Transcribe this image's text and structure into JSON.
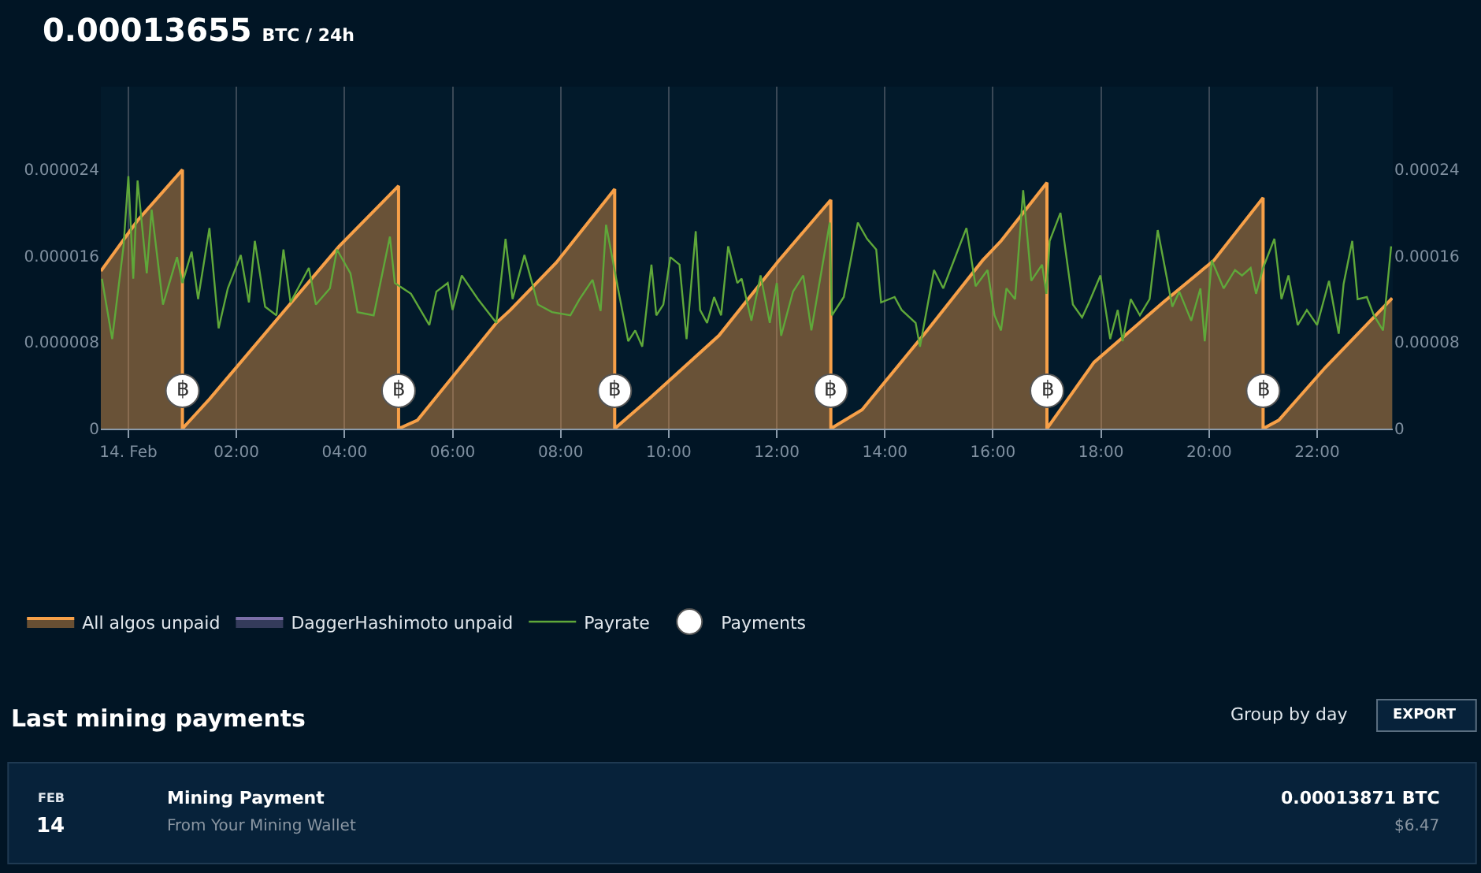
{
  "chart_data": {
    "type": "line",
    "title": "0.00013655",
    "subtitle": "BTC / 24h",
    "xlim": [
      -0.51,
      23.4
    ],
    "xticks": [
      {
        "value": 0,
        "label": "14. Feb"
      },
      {
        "value": 2,
        "label": "02:00"
      },
      {
        "value": 4,
        "label": "04:00"
      },
      {
        "value": 6,
        "label": "06:00"
      },
      {
        "value": 8,
        "label": "08:00"
      },
      {
        "value": 10,
        "label": "10:00"
      },
      {
        "value": 12,
        "label": "12:00"
      },
      {
        "value": 14,
        "label": "14:00"
      },
      {
        "value": 16,
        "label": "16:00"
      },
      {
        "value": 18,
        "label": "18:00"
      },
      {
        "value": 20,
        "label": "20:00"
      },
      {
        "value": 22,
        "label": "22:00"
      }
    ],
    "ylim": [
      0,
      3.17e-05
    ],
    "yticks": [
      0,
      {
        "value": 8e-06,
        "label": "0.000008"
      },
      {
        "value": 1.6e-05,
        "label": "0.000016"
      },
      {
        "value": 2.4e-05,
        "label": "0.000024"
      }
    ],
    "y2lim": [
      0,
      0.000317
    ],
    "y2ticks": [
      0,
      {
        "value": 8e-05,
        "label": "0.00008"
      },
      {
        "value": 0.00016,
        "label": "0.00016"
      },
      {
        "value": 0.00024,
        "label": "0.00024"
      }
    ],
    "grid": "x",
    "legend": "bottom",
    "series": [
      {
        "name": "All algos unpaid",
        "type": "area",
        "axis": "y2",
        "color": "#f7a048",
        "x": [
          -0.51,
          0.17,
          1.0,
          1.0,
          1.5,
          2.78,
          3.9,
          5.0,
          5.0,
          5.35,
          6.81,
          7.07,
          7.92,
          9.0,
          9.0,
          9.64,
          10.93,
          12.04,
          13.0,
          13.0,
          13.58,
          14.78,
          15.81,
          16.15,
          17.0,
          17.0,
          17.87,
          19.15,
          20.09,
          21.0,
          21.0,
          21.29,
          22.15,
          23.39
        ],
        "values": [
          0.000146,
          0.000193,
          0.00024,
          0,
          2.73e-05,
          0.000103,
          0.000169,
          0.000225,
          0,
          7.8e-06,
          9.8e-05,
          0.00011,
          0.000154,
          0.000222,
          0,
          2.78e-05,
          8.63e-05,
          0.000156,
          0.000212,
          0,
          1.76e-05,
          9.07e-05,
          0.000156,
          0.000174,
          0.000228,
          0,
          6.14e-05,
          0.000117,
          0.000156,
          0.000214,
          0,
          7.8e-06,
          5.66e-05,
          0.000121
        ]
      },
      {
        "name": "DaggerHashimoto unpaid",
        "type": "area",
        "axis": "y2",
        "color": "#7b6fa8"
      },
      {
        "name": "Payrate",
        "color": "#5fa83a",
        "marker": "none",
        "x": [
          -0.49,
          -0.3,
          -0.09,
          0.0,
          0.09,
          0.17,
          0.34,
          0.43,
          0.64,
          0.9,
          1.0,
          1.17,
          1.29,
          1.5,
          1.67,
          1.84,
          2.08,
          2.23,
          2.34,
          2.53,
          2.74,
          2.87,
          3.0,
          3.34,
          3.47,
          3.73,
          3.86,
          4.11,
          4.24,
          4.54,
          4.84,
          4.93,
          5.23,
          5.57,
          5.7,
          5.91,
          6.0,
          6.17,
          6.47,
          6.81,
          6.98,
          7.11,
          7.33,
          7.58,
          7.84,
          8.18,
          8.35,
          8.59,
          8.74,
          8.84,
          9.08,
          9.25,
          9.38,
          9.51,
          9.68,
          9.77,
          9.9,
          10.03,
          10.2,
          10.33,
          10.5,
          10.58,
          10.71,
          10.84,
          10.97,
          11.1,
          11.27,
          11.35,
          11.53,
          11.7,
          11.87,
          12.0,
          12.08,
          12.3,
          12.49,
          12.64,
          12.98,
          13.02,
          13.24,
          13.5,
          13.67,
          13.84,
          13.93,
          14.18,
          14.31,
          14.57,
          14.65,
          14.91,
          15.08,
          15.34,
          15.51,
          15.68,
          15.9,
          16.03,
          16.15,
          16.25,
          16.41,
          16.56,
          16.71,
          16.91,
          16.99,
          17.05,
          17.25,
          17.48,
          17.65,
          17.78,
          17.99,
          18.17,
          18.31,
          18.4,
          18.55,
          18.72,
          18.9,
          19.05,
          19.32,
          19.45,
          19.67,
          19.84,
          19.92,
          20.05,
          20.27,
          20.48,
          20.61,
          20.77,
          20.87,
          21.0,
          21.21,
          21.34,
          21.47,
          21.64,
          21.81,
          22.0,
          22.22,
          22.4,
          22.49,
          22.65,
          22.75,
          22.92,
          23.05,
          23.22,
          23.37
        ],
        "values": [
          1.39e-05,
          8.3e-06,
          1.69e-05,
          2.34e-05,
          1.39e-05,
          2.3e-05,
          1.44e-05,
          2.03e-05,
          1.15e-05,
          1.59e-05,
          1.35e-05,
          1.64e-05,
          1.2e-05,
          1.86e-05,
          9.3e-06,
          1.3e-05,
          1.61e-05,
          1.17e-05,
          1.74e-05,
          1.13e-05,
          1.05e-05,
          1.66e-05,
          1.17e-05,
          1.49e-05,
          1.15e-05,
          1.3e-05,
          1.66e-05,
          1.44e-05,
          1.08e-05,
          1.05e-05,
          1.78e-05,
          1.35e-05,
          1.25e-05,
          9.6e-06,
          1.27e-05,
          1.35e-05,
          1.1e-05,
          1.42e-05,
          1.2e-05,
          9.8e-06,
          1.76e-05,
          1.2e-05,
          1.61e-05,
          1.15e-05,
          1.08e-05,
          1.05e-05,
          1.2e-05,
          1.38e-05,
          1.09e-05,
          1.89e-05,
          1.25e-05,
          8.1e-06,
          9.1e-06,
          7.6e-06,
          1.52e-05,
          1.05e-05,
          1.15e-05,
          1.59e-05,
          1.52e-05,
          8.3e-06,
          1.83e-05,
          1.1e-05,
          9.8e-06,
          1.22e-05,
          1.05e-05,
          1.69e-05,
          1.35e-05,
          1.39e-05,
          1e-05,
          1.42e-05,
          9.8e-06,
          1.35e-05,
          8.6e-06,
          1.27e-05,
          1.42e-05,
          9.1e-06,
          1.91e-05,
          1.05e-05,
          1.22e-05,
          1.91e-05,
          1.76e-05,
          1.66e-05,
          1.17e-05,
          1.22e-05,
          1.1e-05,
          9.8e-06,
          7.6e-06,
          1.47e-05,
          1.3e-05,
          1.64e-05,
          1.86e-05,
          1.32e-05,
          1.47e-05,
          1.05e-05,
          9.1e-06,
          1.3e-05,
          1.2e-05,
          2.21e-05,
          1.37e-05,
          1.52e-05,
          1.25e-05,
          1.74e-05,
          2e-05,
          1.15e-05,
          1.03e-05,
          1.17e-05,
          1.42e-05,
          8.3e-06,
          1.1e-05,
          8.1e-06,
          1.2e-05,
          1.05e-05,
          1.2e-05,
          1.84e-05,
          1.13e-05,
          1.27e-05,
          1e-05,
          1.3e-05,
          8.1e-06,
          1.56e-05,
          1.3e-05,
          1.47e-05,
          1.42e-05,
          1.49e-05,
          1.25e-05,
          1.49e-05,
          1.76e-05,
          1.2e-05,
          1.42e-05,
          9.6e-06,
          1.1e-05,
          9.6e-06,
          1.37e-05,
          8.8e-06,
          1.34e-05,
          1.74e-05,
          1.2e-05,
          1.22e-05,
          1.05e-05,
          9.1e-06,
          1.69e-05
        ]
      },
      {
        "name": "Payments",
        "type": "scatter",
        "axis": "y2",
        "color": "#ffffff",
        "marker": "circle",
        "x": [
          1.0,
          5.0,
          9.0,
          13.0,
          17.0,
          21.0
        ],
        "values": [
          3.51e-05,
          3.51e-05,
          3.51e-05,
          3.51e-05,
          3.51e-05,
          3.51e-05
        ],
        "value_labels": [
          "฿",
          "฿",
          "฿",
          "฿",
          "฿",
          "฿"
        ]
      }
    ],
    "annotations": [
      "Last mining payments",
      "Group by day",
      "EXPORT",
      "FEB",
      "14",
      "Mining Payment",
      "From Your Mining Wallet",
      "0.00013871 BTC",
      "$6.47"
    ]
  }
}
